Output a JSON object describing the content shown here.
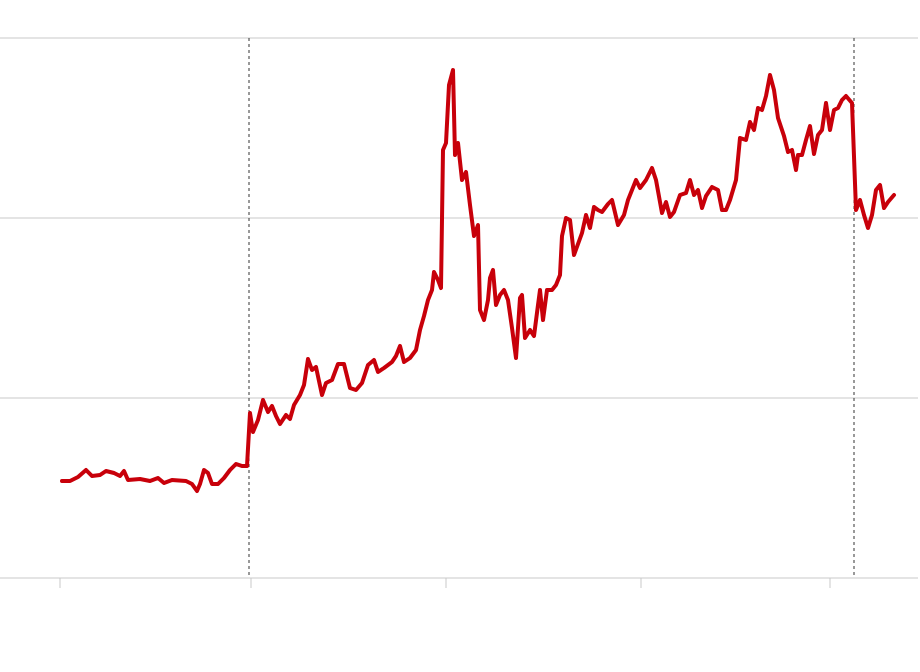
{
  "chart_data": {
    "type": "line",
    "color": "#c8000a",
    "grid": true,
    "xlim": [
      0,
      918
    ],
    "xticks": [
      60,
      251,
      446,
      641,
      830
    ],
    "vlines": [
      249,
      854
    ],
    "ylim": [
      0,
      578
    ],
    "yticks": [
      0,
      180,
      360,
      540
    ],
    "x": [
      62,
      70,
      78,
      86,
      92,
      100,
      106,
      114,
      120,
      124,
      128,
      140,
      150,
      158,
      164,
      172,
      186,
      192,
      197,
      200,
      204,
      208,
      212,
      218,
      224,
      230,
      236,
      242,
      247,
      250,
      253,
      258,
      263,
      268,
      272,
      276,
      280,
      286,
      290,
      294,
      300,
      304,
      308,
      312,
      316,
      322,
      326,
      332,
      338,
      344,
      350,
      356,
      362,
      368,
      374,
      378,
      384,
      392,
      396,
      400,
      404,
      410,
      416,
      420,
      424,
      428,
      432,
      434,
      438,
      441,
      443,
      446,
      449,
      453,
      455,
      458,
      462,
      466,
      470,
      474,
      478,
      480,
      484,
      488,
      490,
      493,
      496,
      500,
      504,
      508,
      512,
      516,
      520,
      522,
      525,
      530,
      534,
      538,
      540,
      543,
      547,
      552,
      556,
      560,
      562,
      566,
      570,
      574,
      578,
      582,
      586,
      590,
      594,
      598,
      602,
      608,
      612,
      618,
      624,
      628,
      636,
      640,
      646,
      652,
      656,
      662,
      666,
      670,
      674,
      680,
      686,
      690,
      694,
      698,
      702,
      706,
      712,
      718,
      722,
      726,
      730,
      736,
      740,
      746,
      750,
      754,
      758,
      762,
      766,
      770,
      774,
      778,
      784,
      788,
      792,
      796,
      798,
      802,
      806,
      810,
      814,
      818,
      822,
      826,
      830,
      834,
      838,
      842,
      846,
      852,
      856,
      860,
      864,
      868,
      872,
      876,
      880,
      884,
      888,
      894
    ],
    "values": [
      97,
      97,
      101,
      108,
      102,
      103,
      107,
      105,
      102,
      107,
      98,
      99,
      97,
      100,
      95,
      98,
      97,
      94,
      87,
      94,
      108,
      105,
      94,
      94,
      100,
      108,
      114,
      112,
      112,
      165,
      146,
      158,
      178,
      166,
      172,
      162,
      154,
      163,
      159,
      173,
      183,
      193,
      219,
      208,
      211,
      183,
      195,
      198,
      214,
      214,
      190,
      188,
      195,
      213,
      218,
      206,
      210,
      216,
      222,
      232,
      216,
      220,
      228,
      248,
      262,
      278,
      288,
      306,
      298,
      290,
      428,
      435,
      493,
      508,
      423,
      435,
      398,
      406,
      373,
      342,
      353,
      268,
      258,
      278,
      300,
      308,
      273,
      283,
      288,
      278,
      250,
      220,
      280,
      283,
      240,
      248,
      242,
      273,
      288,
      258,
      288,
      288,
      293,
      303,
      342,
      360,
      358,
      323,
      334,
      345,
      363,
      350,
      371,
      368,
      366,
      374,
      378,
      353,
      363,
      378,
      398,
      390,
      398,
      410,
      398,
      365,
      376,
      361,
      366,
      383,
      385,
      398,
      383,
      388,
      370,
      382,
      391,
      388,
      368,
      368,
      378,
      398,
      440,
      438,
      456,
      448,
      470,
      468,
      482,
      503,
      488,
      460,
      442,
      426,
      428,
      408,
      423,
      423,
      438,
      452,
      424,
      443,
      448,
      475,
      448,
      468,
      470,
      478,
      482,
      475,
      368,
      378,
      363,
      350,
      363,
      388,
      393,
      370,
      376,
      383
    ]
  }
}
